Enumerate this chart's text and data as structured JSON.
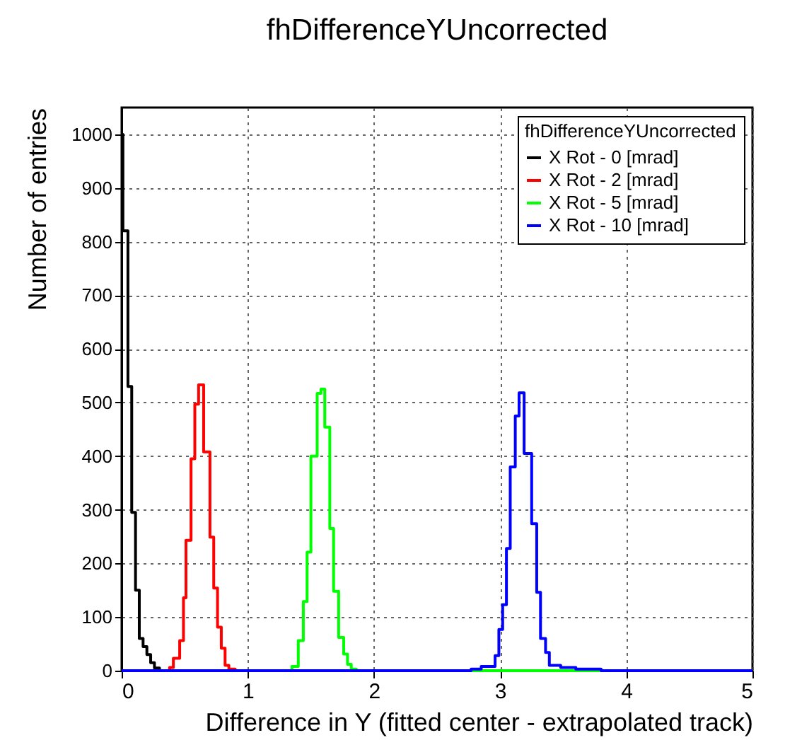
{
  "chart_data": {
    "type": "step",
    "title": "fhDifferenceYUncorrected",
    "xlabel": "Difference in Y (fitted center - extrapolated track)",
    "ylabel": "Number of entries",
    "legend_title": "fhDifferenceYUncorrected",
    "legend": "top right",
    "grid": true,
    "xlim": [
      0,
      5
    ],
    "ylim": [
      0,
      1050
    ],
    "xticks": [
      0,
      1,
      2,
      3,
      4,
      5
    ],
    "yticks": [
      0,
      100,
      200,
      300,
      400,
      500,
      600,
      700,
      800,
      900,
      1000
    ],
    "series": [
      {
        "name": "X Rot - 0 [mrad]",
        "color": "#000000",
        "x": [
          0,
          0.01,
          0.05,
          0.08,
          0.11,
          0.14,
          0.17,
          0.2,
          0.23,
          0.26,
          0.3,
          5
        ],
        "values": [
          1000,
          820,
          530,
          295,
          150,
          60,
          45,
          30,
          15,
          5,
          0,
          0
        ]
      },
      {
        "name": "X Rot - 2 [mrad]",
        "color": "#ff0000",
        "x": [
          0,
          0.38,
          0.41,
          0.46,
          0.49,
          0.51,
          0.55,
          0.58,
          0.61,
          0.65,
          0.7,
          0.73,
          0.76,
          0.79,
          0.82,
          0.85,
          0.9,
          5
        ],
        "values": [
          0,
          6,
          23,
          56,
          136,
          243,
          395,
          497,
          533,
          408,
          249,
          154,
          81,
          42,
          10,
          3,
          0,
          0
        ]
      },
      {
        "name": "X Rot - 5 [mrad]",
        "color": "#00ff00",
        "x": [
          0,
          1.35,
          1.4,
          1.44,
          1.47,
          1.5,
          1.55,
          1.58,
          1.61,
          1.65,
          1.68,
          1.72,
          1.76,
          1.79,
          1.82,
          1.86,
          5
        ],
        "values": [
          0,
          8,
          56,
          129,
          221,
          400,
          517,
          525,
          454,
          265,
          148,
          62,
          31,
          12,
          3,
          0,
          0
        ]
      },
      {
        "name": "X Rot - 10 [mrad]",
        "color": "#0000ff",
        "x": [
          0,
          2.77,
          2.85,
          2.96,
          2.99,
          3.02,
          3.05,
          3.08,
          3.12,
          3.15,
          3.19,
          3.25,
          3.29,
          3.32,
          3.36,
          3.39,
          3.48,
          3.6,
          3.8,
          5
        ],
        "values": [
          0,
          3,
          8,
          28,
          77,
          123,
          228,
          380,
          475,
          518,
          405,
          274,
          146,
          60,
          34,
          10,
          6,
          3,
          0,
          0
        ]
      }
    ]
  }
}
